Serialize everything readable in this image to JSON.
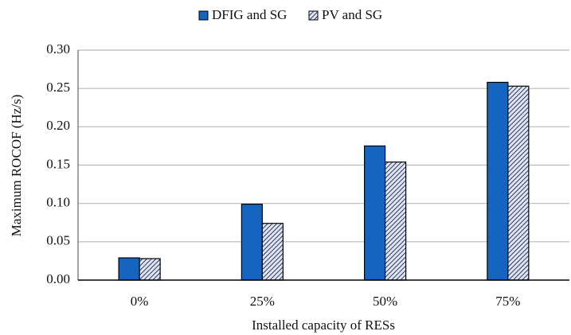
{
  "chart_data": {
    "type": "bar",
    "xlabel": "Installed capacity of RESs",
    "ylabel": "Maximum ROCOF (Hz/s)",
    "categories": [
      "0%",
      "25%",
      "50%",
      "75%"
    ],
    "series": [
      {
        "name": "DFIG and SG",
        "color": "#1565c0",
        "pattern": "solid",
        "values": [
          0.029,
          0.099,
          0.175,
          0.258
        ]
      },
      {
        "name": "PV and SG",
        "color": "#2b3a67",
        "pattern": "hatch",
        "values": [
          0.028,
          0.074,
          0.154,
          0.253
        ]
      }
    ],
    "ylim": [
      0,
      0.3
    ],
    "yticks": [
      {
        "value": 0,
        "label": "0.00"
      },
      {
        "value": 0.05,
        "label": "0.05"
      },
      {
        "value": 0.1,
        "label": "0.10"
      },
      {
        "value": 0.15,
        "label": "0.15"
      },
      {
        "value": 0.2,
        "label": "0.20"
      },
      {
        "value": 0.25,
        "label": "0.25"
      },
      {
        "value": 0.3,
        "label": "0.30"
      }
    ],
    "grid": true,
    "legend": "top"
  }
}
